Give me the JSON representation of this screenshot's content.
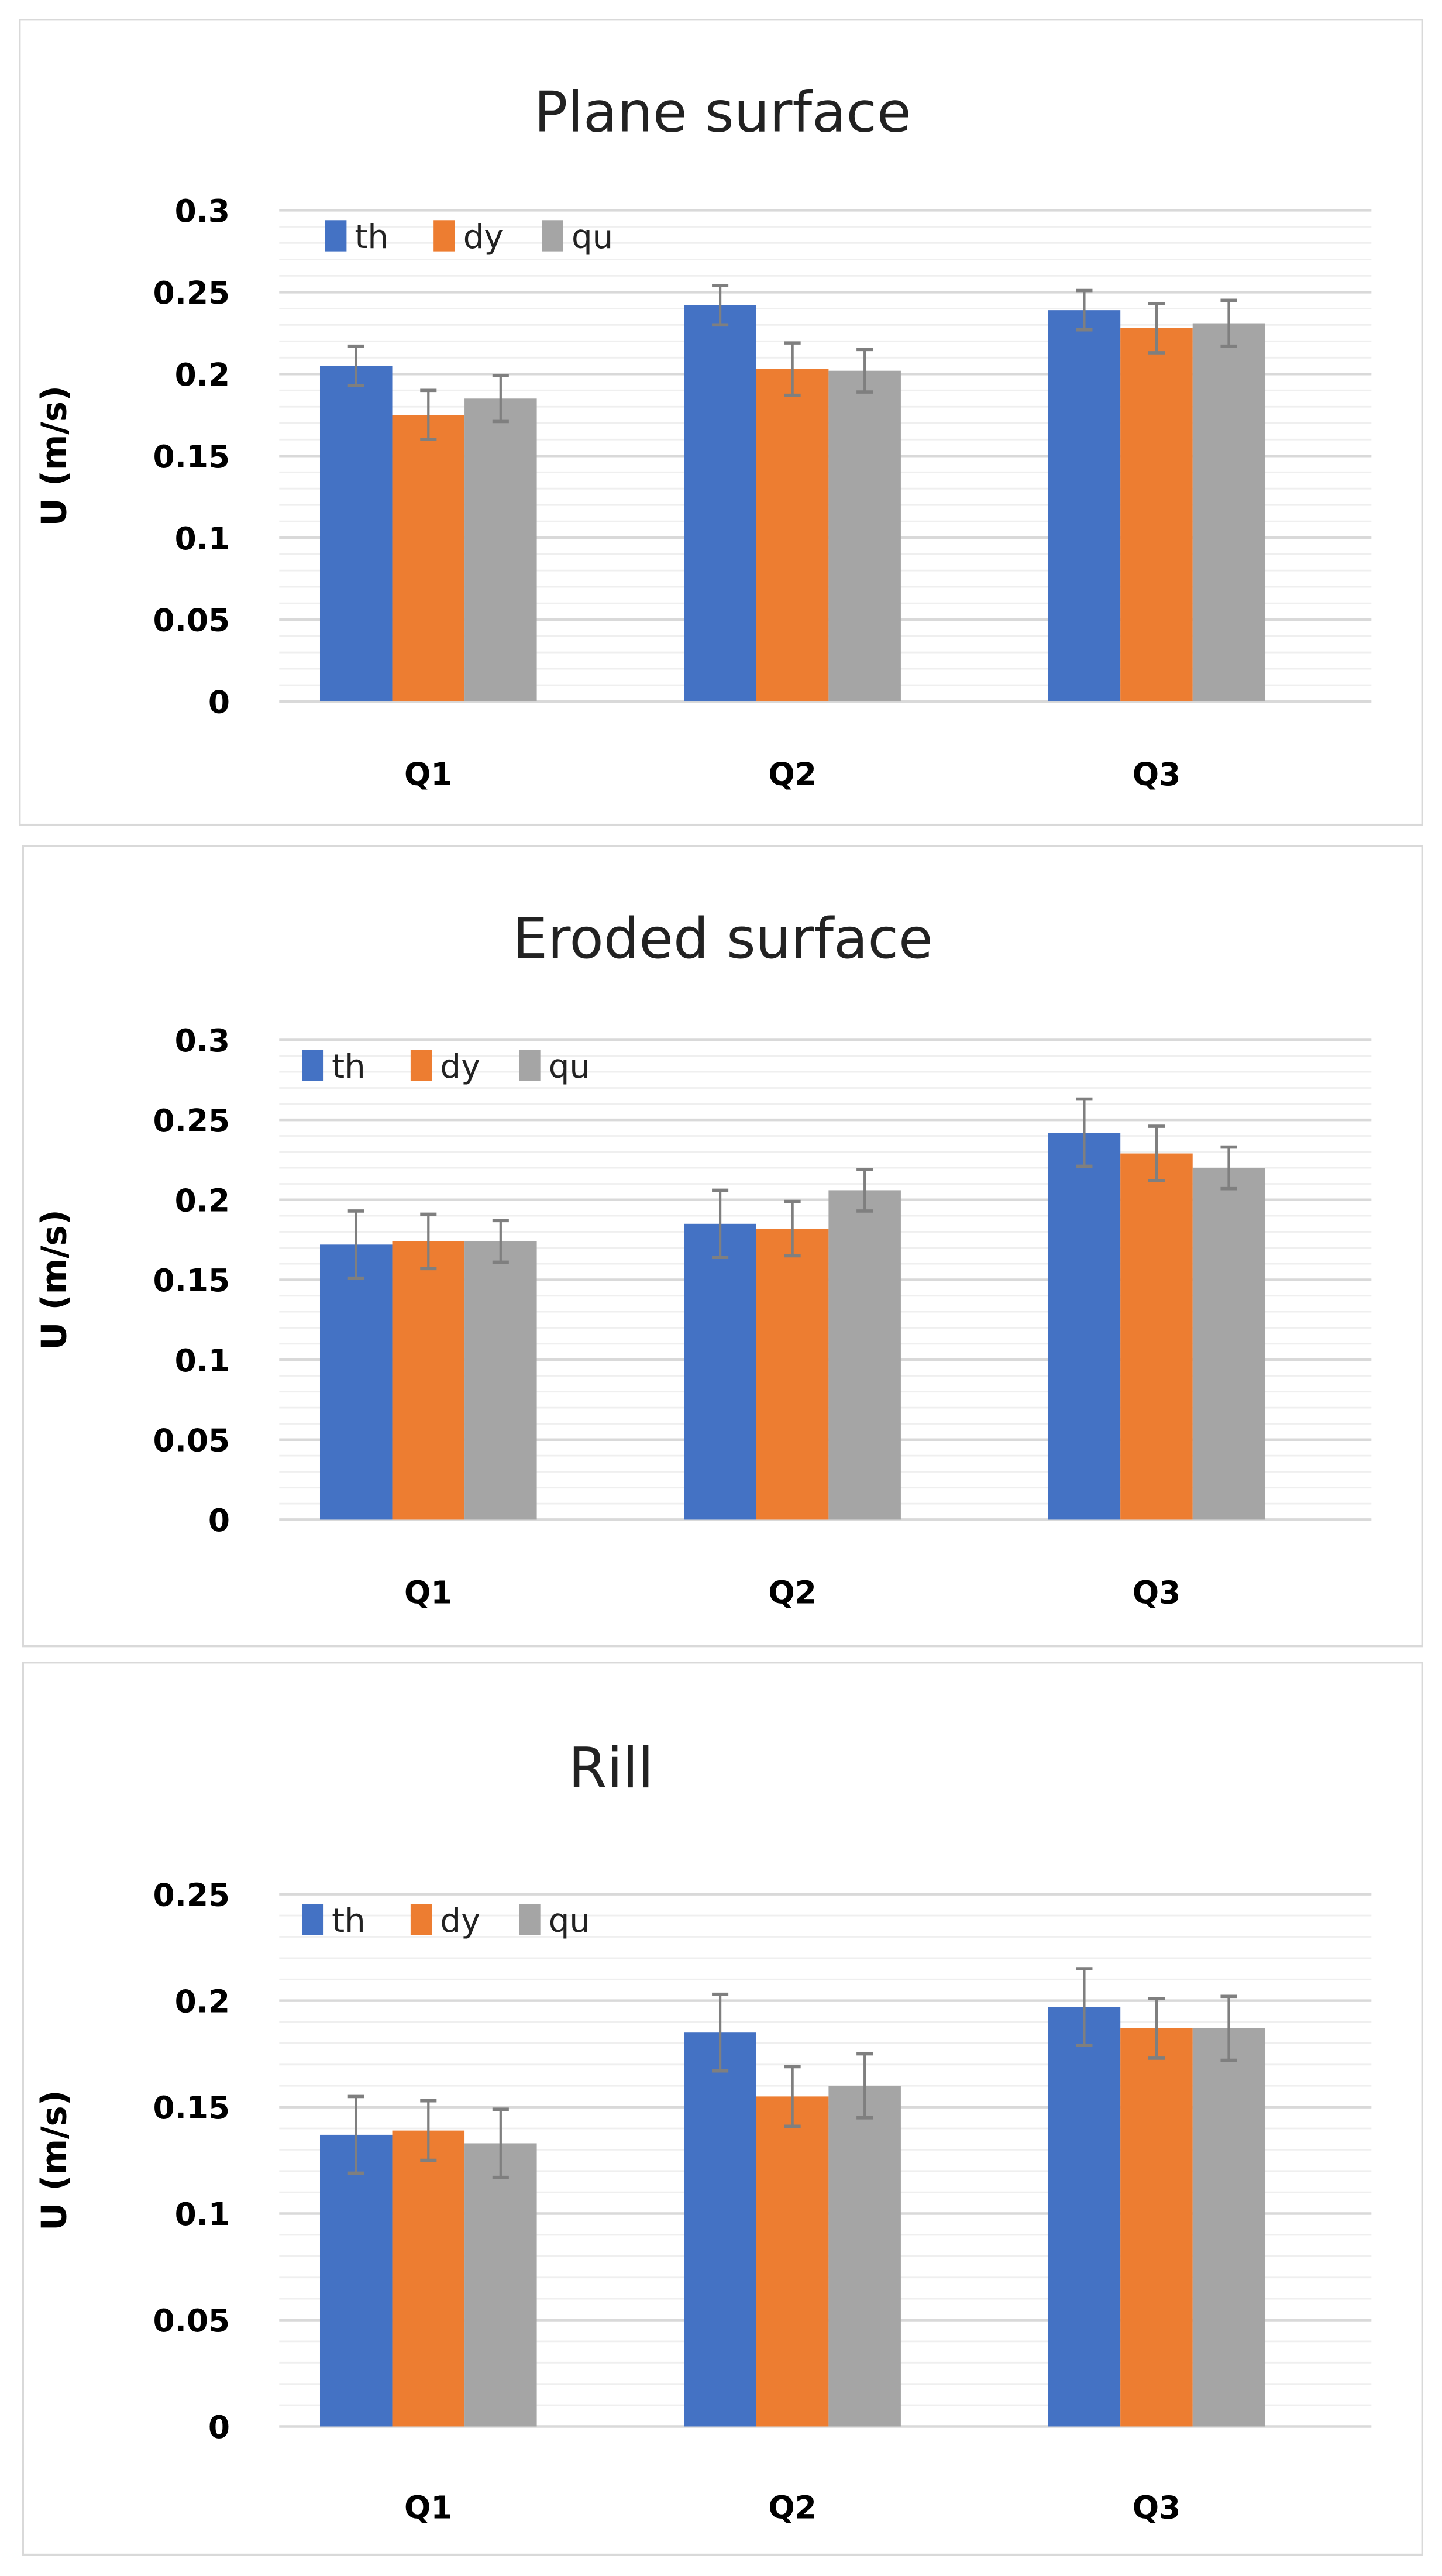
{
  "colors": {
    "th": "#4472C4",
    "dy": "#ED7D31",
    "qu": "#A5A5A5",
    "error_bar": "#7f7f7f",
    "grid": "#d9d9d9"
  },
  "chart_data": [
    {
      "type": "bar",
      "title": "Plane surface",
      "xlabel": "",
      "ylabel": "U (m/s)",
      "categories": [
        "Q1",
        "Q2",
        "Q3"
      ],
      "ylim": [
        0,
        0.3
      ],
      "yticks": [
        "0",
        "0.05",
        "0.1",
        "0.15",
        "0.2",
        "0.25",
        "0.3"
      ],
      "grid": true,
      "legend": "top-left",
      "series": [
        {
          "name": "th",
          "values": [
            0.205,
            0.242,
            0.239
          ],
          "errors": [
            0.012,
            0.012,
            0.012
          ]
        },
        {
          "name": "dy",
          "values": [
            0.175,
            0.203,
            0.228
          ],
          "errors": [
            0.015,
            0.016,
            0.015
          ]
        },
        {
          "name": "qu",
          "values": [
            0.185,
            0.202,
            0.231
          ],
          "errors": [
            0.014,
            0.013,
            0.014
          ]
        }
      ]
    },
    {
      "type": "bar",
      "title": "Eroded surface",
      "xlabel": "",
      "ylabel": "U (m/s)",
      "categories": [
        "Q1",
        "Q2",
        "Q3"
      ],
      "ylim": [
        0,
        0.3
      ],
      "yticks": [
        "0",
        "0.05",
        "0.1",
        "0.15",
        "0.2",
        "0.25",
        "0.3"
      ],
      "grid": true,
      "legend": "top-left",
      "series": [
        {
          "name": "th",
          "values": [
            0.172,
            0.185,
            0.242
          ],
          "errors": [
            0.021,
            0.021,
            0.021
          ]
        },
        {
          "name": "dy",
          "values": [
            0.174,
            0.182,
            0.229
          ],
          "errors": [
            0.017,
            0.017,
            0.017
          ]
        },
        {
          "name": "qu",
          "values": [
            0.174,
            0.206,
            0.22
          ],
          "errors": [
            0.013,
            0.013,
            0.013
          ]
        }
      ]
    },
    {
      "type": "bar",
      "title": "Rill",
      "xlabel": "",
      "ylabel": "U (m/s)",
      "categories": [
        "Q1",
        "Q2",
        "Q3"
      ],
      "ylim": [
        0,
        0.25
      ],
      "yticks": [
        "0",
        "0.05",
        "0.1",
        "0.15",
        "0.2",
        "0.25"
      ],
      "grid": true,
      "legend": "top-left",
      "series": [
        {
          "name": "th",
          "values": [
            0.137,
            0.185,
            0.197
          ],
          "errors": [
            0.018,
            0.018,
            0.018
          ]
        },
        {
          "name": "dy",
          "values": [
            0.139,
            0.155,
            0.187
          ],
          "errors": [
            0.014,
            0.014,
            0.014
          ]
        },
        {
          "name": "qu",
          "values": [
            0.133,
            0.16,
            0.187
          ],
          "errors": [
            0.016,
            0.015,
            0.015
          ]
        }
      ]
    }
  ]
}
